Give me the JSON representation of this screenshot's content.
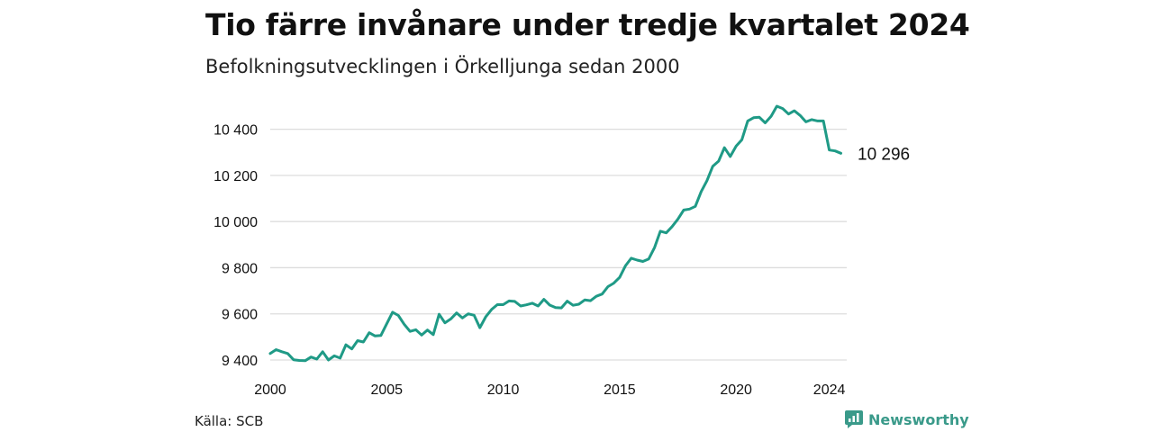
{
  "header": {
    "title": "Tio färre invånare under tredje kvartalet 2024",
    "subtitle": "Befolkningsutvecklingen i Örkelljunga sedan 2000"
  },
  "footer": {
    "source": "Källa: SCB",
    "brand": "Newsworthy",
    "brand_icon": "chart-bubble-icon"
  },
  "colors": {
    "line": "#1f9a86",
    "grid": "#dddddd",
    "brand": "#3a9a8a"
  },
  "chart_data": {
    "type": "line",
    "title": "Tio färre invånare under tredje kvartalet 2024",
    "subtitle": "Befolkningsutvecklingen i Örkelljunga sedan 2000",
    "xlim": [
      2000,
      2024.75
    ],
    "ylim": [
      9400,
      10500
    ],
    "yticks": [
      9400,
      9600,
      9800,
      10000,
      10200,
      10400
    ],
    "ytick_labels": [
      "9 400",
      "9 600",
      "9 800",
      "10 000",
      "10 200",
      "10 400"
    ],
    "xticks": [
      2000,
      2005,
      2010,
      2015,
      2020,
      2024
    ],
    "xtick_labels": [
      "2000",
      "2005",
      "2010",
      "2015",
      "2020",
      "2024"
    ],
    "grid": true,
    "end_label": "10 296",
    "series": [
      {
        "x_start": 2000.0,
        "x_step": 0.25,
        "values": [
          9428,
          9445,
          9436,
          9428,
          9401,
          9398,
          9397,
          9413,
          9404,
          9436,
          9400,
          9418,
          9408,
          9466,
          9448,
          9484,
          9478,
          9518,
          9504,
          9506,
          9557,
          9607,
          9593,
          9555,
          9524,
          9531,
          9508,
          9530,
          9510,
          9598,
          9561,
          9578,
          9604,
          9582,
          9600,
          9594,
          9540,
          9587,
          9619,
          9640,
          9640,
          9656,
          9654,
          9634,
          9639,
          9646,
          9634,
          9663,
          9638,
          9627,
          9626,
          9655,
          9637,
          9642,
          9660,
          9657,
          9676,
          9686,
          9718,
          9733,
          9758,
          9808,
          9841,
          9833,
          9827,
          9838,
          9888,
          9958,
          9951,
          9978,
          10010,
          10050,
          10054,
          10066,
          10130,
          10177,
          10240,
          10262,
          10320,
          10282,
          10327,
          10355,
          10436,
          10450,
          10452,
          10428,
          10456,
          10500,
          10490,
          10466,
          10480,
          10460,
          10432,
          10442,
          10436,
          10436,
          10310,
          10306,
          10296
        ]
      }
    ]
  }
}
